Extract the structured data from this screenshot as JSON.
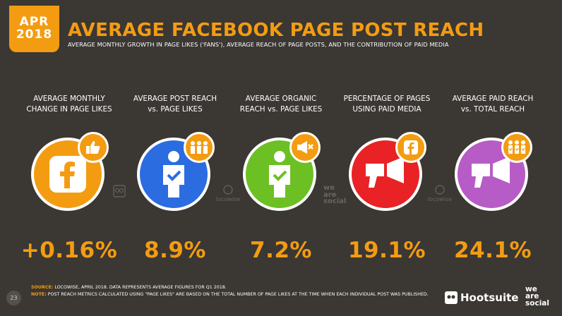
{
  "header": {
    "month": "APR",
    "year": "2018",
    "title": "AVERAGE FACEBOOK PAGE POST REACH",
    "subtitle": "AVERAGE MONTHLY GROWTH IN PAGE LIKES ('FANS'), AVERAGE REACH OF PAGE POSTS, AND THE CONTRIBUTION OF PAID MEDIA"
  },
  "colors": {
    "accent": "#f39c12",
    "background": "#3b3733",
    "orange": "#f39c12",
    "blue": "#2b6de0",
    "green": "#6cc024",
    "red": "#e82225",
    "purple": "#b75cc6"
  },
  "metrics": [
    {
      "label_line1": "AVERAGE MONTHLY",
      "label_line2": "CHANGE IN PAGE LIKES",
      "value": "+0.16%",
      "icon": "facebook-icon",
      "badge_icon": "thumbs-up-icon"
    },
    {
      "label_line1": "AVERAGE POST REACH",
      "label_line2": "vs. PAGE LIKES",
      "value": "8.9%",
      "icon": "person-check-icon",
      "badge_icon": "group-icon"
    },
    {
      "label_line1": "AVERAGE ORGANIC",
      "label_line2": "REACH vs. PAGE LIKES",
      "value": "7.2%",
      "icon": "person-check-icon",
      "badge_icon": "megaphone-cross-icon"
    },
    {
      "label_line1": "PERCENTAGE OF PAGES",
      "label_line2": "USING PAID MEDIA",
      "value": "19.1%",
      "icon": "megaphone-icon",
      "badge_icon": "facebook-icon"
    },
    {
      "label_line1": "AVERAGE PAID REACH",
      "label_line2": "vs. TOTAL REACH",
      "value": "24.1%",
      "icon": "megaphone-icon",
      "badge_icon": "group-check-icon"
    }
  ],
  "watermarks": {
    "locowise": "locowise",
    "we_are_social": "we are social"
  },
  "footer": {
    "page_number": "23",
    "source_key": "SOURCE:",
    "source_text": "LOCOWISE, APRIL 2018. DATA REPRESENTS AVERAGE FIGURES FOR Q1 2018.",
    "note_key": "NOTE:",
    "note_text": "POST REACH METRICS CALCULATED USING \"PAGE LIKES\" ARE BASED ON THE TOTAL NUMBER OF PAGE LIKES AT THE TIME WHEN EACH INDIVIDUAL POST WAS PUBLISHED.",
    "brand1": "Hootsuite",
    "brand2_line1": "we",
    "brand2_line2": "are",
    "brand2_line3": "social"
  }
}
